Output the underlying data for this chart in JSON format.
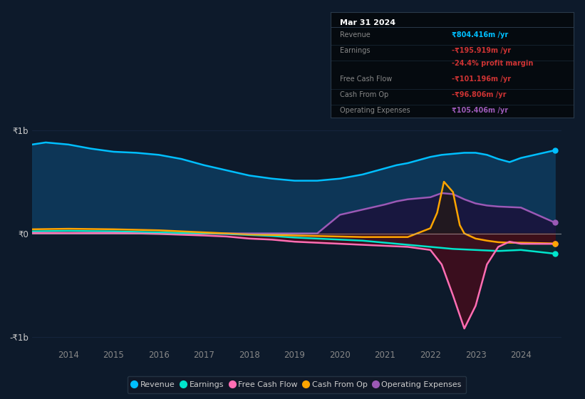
{
  "bg_color": "#0d1a2b",
  "plot_bg_color": "#0d1a2b",
  "ylim": [
    -1100000000.0,
    1100000000.0
  ],
  "xlim": [
    2013.2,
    2024.9
  ],
  "yticks": [
    -1000000000.0,
    0,
    1000000000.0
  ],
  "ytick_labels": [
    "-₹1b",
    "₹0",
    "₹1b"
  ],
  "xtick_years": [
    2014,
    2015,
    2016,
    2017,
    2018,
    2019,
    2020,
    2021,
    2022,
    2023,
    2024
  ],
  "legend_items": [
    {
      "label": "Revenue",
      "color": "#00bfff"
    },
    {
      "label": "Earnings",
      "color": "#00e5cc"
    },
    {
      "label": "Free Cash Flow",
      "color": "#ff6eb4"
    },
    {
      "label": "Cash From Op",
      "color": "#ffa500"
    },
    {
      "label": "Operating Expenses",
      "color": "#9b59b6"
    }
  ],
  "info_box": {
    "title": "Mar 31 2024",
    "rows": [
      {
        "label": "Revenue",
        "value": "₹804.416m /yr",
        "value_color": "#00bfff",
        "label_color": "#888888"
      },
      {
        "label": "Earnings",
        "value": "-₹195.919m /yr",
        "value_color": "#cc3333",
        "label_color": "#888888"
      },
      {
        "label": "",
        "value": "-24.4% profit margin",
        "value_color": "#cc3333",
        "label_color": "#888888"
      },
      {
        "label": "Free Cash Flow",
        "value": "-₹101.196m /yr",
        "value_color": "#cc3333",
        "label_color": "#888888"
      },
      {
        "label": "Cash From Op",
        "value": "-₹96.806m /yr",
        "value_color": "#cc3333",
        "label_color": "#888888"
      },
      {
        "label": "Operating Expenses",
        "value": "₹105.406m /yr",
        "value_color": "#9b59b6",
        "label_color": "#888888"
      }
    ]
  },
  "revenue": {
    "x": [
      2013.2,
      2013.5,
      2014.0,
      2014.5,
      2015.0,
      2015.5,
      2016.0,
      2016.5,
      2017.0,
      2017.5,
      2018.0,
      2018.5,
      2019.0,
      2019.5,
      2020.0,
      2020.5,
      2021.0,
      2021.25,
      2021.5,
      2021.75,
      2022.0,
      2022.25,
      2022.5,
      2022.75,
      2023.0,
      2023.25,
      2023.5,
      2023.75,
      2024.0,
      2024.75
    ],
    "y": [
      860000000.0,
      880000000.0,
      860000000.0,
      820000000.0,
      790000000.0,
      780000000.0,
      760000000.0,
      720000000.0,
      660000000.0,
      610000000.0,
      560000000.0,
      530000000.0,
      510000000.0,
      510000000.0,
      530000000.0,
      570000000.0,
      630000000.0,
      660000000.0,
      680000000.0,
      710000000.0,
      740000000.0,
      760000000.0,
      770000000.0,
      780000000.0,
      780000000.0,
      760000000.0,
      720000000.0,
      690000000.0,
      730000000.0,
      804000000.0
    ],
    "color": "#00bfff",
    "fill_color": "#0d3a5c",
    "fill_alpha": 0.9
  },
  "earnings": {
    "x": [
      2013.2,
      2014.0,
      2014.5,
      2015.0,
      2015.5,
      2016.0,
      2016.5,
      2017.0,
      2017.5,
      2018.0,
      2018.5,
      2019.0,
      2019.5,
      2020.0,
      2020.5,
      2021.0,
      2021.5,
      2022.0,
      2022.5,
      2023.0,
      2023.5,
      2024.0,
      2024.75
    ],
    "y": [
      20000000.0,
      25000000.0,
      22000000.0,
      20000000.0,
      15000000.0,
      10000000.0,
      5000000.0,
      0.0,
      -5000000.0,
      -15000000.0,
      -25000000.0,
      -40000000.0,
      -50000000.0,
      -60000000.0,
      -70000000.0,
      -90000000.0,
      -110000000.0,
      -130000000.0,
      -150000000.0,
      -160000000.0,
      -170000000.0,
      -160000000.0,
      -196000000.0
    ],
    "color": "#00e5cc",
    "fill_color": "#0a3535",
    "fill_alpha": 0.6
  },
  "free_cash_flow": {
    "x": [
      2013.2,
      2014.0,
      2015.0,
      2016.0,
      2017.0,
      2017.5,
      2018.0,
      2018.5,
      2019.0,
      2019.5,
      2020.0,
      2020.5,
      2021.0,
      2021.5,
      2022.0,
      2022.25,
      2022.5,
      2022.75,
      2023.0,
      2023.25,
      2023.5,
      2023.75,
      2024.0,
      2024.75
    ],
    "y": [
      5000000.0,
      5000000.0,
      5000000.0,
      -5000000.0,
      -20000000.0,
      -30000000.0,
      -50000000.0,
      -60000000.0,
      -80000000.0,
      -90000000.0,
      -100000000.0,
      -110000000.0,
      -120000000.0,
      -130000000.0,
      -160000000.0,
      -300000000.0,
      -600000000.0,
      -920000000.0,
      -700000000.0,
      -300000000.0,
      -130000000.0,
      -80000000.0,
      -100000000.0,
      -101000000.0
    ],
    "color": "#ff6eb4",
    "fill_color": "#4a0a1a",
    "fill_alpha": 0.75
  },
  "cash_from_op": {
    "x": [
      2013.2,
      2014.0,
      2015.0,
      2016.0,
      2017.0,
      2017.5,
      2018.0,
      2018.5,
      2019.0,
      2019.5,
      2020.0,
      2020.5,
      2021.0,
      2021.5,
      2022.0,
      2022.15,
      2022.3,
      2022.5,
      2022.65,
      2022.75,
      2023.0,
      2023.25,
      2023.5,
      2023.75,
      2024.0,
      2024.75
    ],
    "y": [
      40000000.0,
      45000000.0,
      40000000.0,
      30000000.0,
      10000000.0,
      0.0,
      -10000000.0,
      -15000000.0,
      -20000000.0,
      -25000000.0,
      -30000000.0,
      -35000000.0,
      -35000000.0,
      -35000000.0,
      50000000.0,
      200000000.0,
      500000000.0,
      400000000.0,
      80000000.0,
      0.0,
      -50000000.0,
      -70000000.0,
      -85000000.0,
      -90000000.0,
      -90000000.0,
      -97000000.0
    ],
    "color": "#ffa500",
    "fill_color": "#2a1a00",
    "fill_alpha": 0.5
  },
  "operating_expenses": {
    "x": [
      2013.2,
      2014.0,
      2015.0,
      2016.0,
      2017.0,
      2018.0,
      2019.0,
      2019.5,
      2020.0,
      2020.5,
      2021.0,
      2021.25,
      2021.5,
      2021.75,
      2022.0,
      2022.25,
      2022.5,
      2022.75,
      2023.0,
      2023.25,
      2023.5,
      2023.75,
      2024.0,
      2024.75
    ],
    "y": [
      0.0,
      0.0,
      0.0,
      0.0,
      0.0,
      0.0,
      0.0,
      0.0,
      180000000.0,
      230000000.0,
      280000000.0,
      310000000.0,
      330000000.0,
      340000000.0,
      350000000.0,
      390000000.0,
      380000000.0,
      330000000.0,
      290000000.0,
      270000000.0,
      260000000.0,
      255000000.0,
      250000000.0,
      105000000.0
    ],
    "color": "#9b59b6",
    "fill_color": "#1e0a35",
    "fill_alpha": 0.7
  }
}
